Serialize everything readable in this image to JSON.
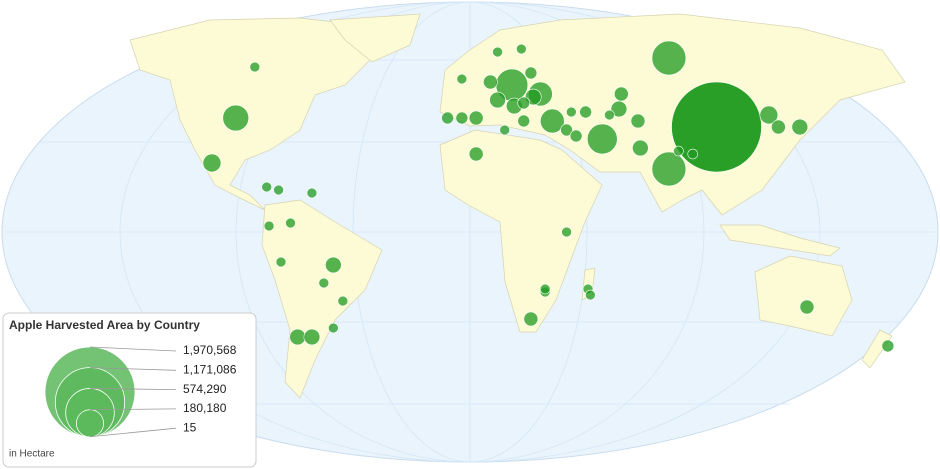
{
  "chart_data": {
    "type": "bubble-map",
    "title": "Apple Harvested Area by Country",
    "note": "in Hectare",
    "color": "#1f9a1f",
    "size_ticks": [
      {
        "value": 1970568,
        "label": "1,970,568"
      },
      {
        "value": 1171086,
        "label": "1,171,086"
      },
      {
        "value": 574290,
        "label": "574,290"
      },
      {
        "value": 180180,
        "label": "180,180"
      },
      15
    ],
    "lon": [
      104,
      84,
      84,
      -98,
      56,
      35,
      18,
      30,
      -108,
      -90,
      139,
      130,
      126,
      72,
      71,
      63,
      64,
      41,
      45,
      3,
      19,
      12,
      3,
      -3,
      -9,
      9,
      27,
      23,
      23,
      26,
      -72,
      -66,
      -57,
      -79,
      26,
      142,
      176,
      50,
      32,
      51,
      41,
      32,
      59,
      -84,
      -75,
      -85,
      -80,
      -66,
      -61,
      -53,
      -57,
      -3,
      12,
      22,
      88,
      94,
      49,
      43,
      15
    ],
    "lat": [
      35,
      58,
      21,
      38,
      31,
      37,
      49,
      46,
      23,
      55,
      35,
      35,
      39,
      28,
      37,
      41,
      46,
      34,
      32,
      26,
      42,
      44,
      38,
      38,
      38,
      50,
      45,
      43,
      37,
      53,
      -35,
      -35,
      -11,
      -10,
      -29,
      -25,
      -38,
      -19,
      -20,
      -21,
      0,
      -19,
      39,
      2,
      3,
      15,
      14,
      13,
      -17,
      -23,
      -32,
      51,
      60,
      61,
      27,
      26,
      40,
      40,
      34
    ],
    "values": [
      1970568,
      281000,
      281000,
      164000,
      219000,
      140000,
      249000,
      140000,
      79000,
      24000,
      62000,
      48000,
      79000,
      62000,
      48000,
      62000,
      48000,
      35000,
      35000,
      48000,
      62000,
      62000,
      48000,
      35000,
      35000,
      48000,
      62000,
      35000,
      35000,
      35000,
      62000,
      62000,
      62000,
      24000,
      48000,
      48000,
      35000,
      24000,
      24000,
      24000,
      24000,
      24000,
      24000,
      24000,
      24000,
      24000,
      24000,
      24000,
      24000,
      24000,
      24000,
      24000,
      24000,
      24000,
      24000,
      24000,
      35000,
      24000,
      24000
    ]
  }
}
